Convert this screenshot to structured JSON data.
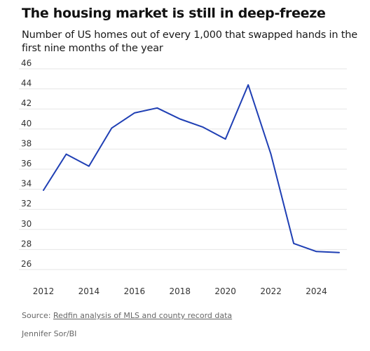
{
  "title": "The housing market is still in deep-freeze",
  "subtitle": "Number of US homes out of every 1,000 that swapped hands in the first nine months of the year",
  "source_prefix": "Source: ",
  "source_link": "Redfin analysis of MLS and county record data",
  "credit": "Jennifer Sor/BI",
  "colors": {
    "line": "#1f3fb4",
    "grid": "#e6e6e6",
    "text": "#1a1a1a",
    "muted": "#666666"
  },
  "chart_data": {
    "type": "line",
    "title": "The housing market is still in deep-freeze",
    "subtitle": "Number of US homes out of every 1,000 that swapped hands in the first nine months of the year",
    "xlabel": "",
    "ylabel": "",
    "x": [
      2012,
      2013,
      2014,
      2015,
      2016,
      2017,
      2018,
      2019,
      2020,
      2021,
      2022,
      2023,
      2024,
      2025
    ],
    "series": [
      {
        "values": [
          33.9,
          37.5,
          36.3,
          40.1,
          41.6,
          42.1,
          41.0,
          40.2,
          39.0,
          44.4,
          37.5,
          28.6,
          27.8,
          27.7
        ]
      }
    ],
    "xlim": [
      2012,
      2025
    ],
    "ylim": [
      26,
      46
    ],
    "y_ticks": [
      26,
      28,
      30,
      32,
      34,
      36,
      38,
      40,
      42,
      44,
      46
    ],
    "x_ticks": [
      2012,
      2014,
      2016,
      2018,
      2020,
      2022,
      2024
    ],
    "grid": true,
    "legend": "none"
  }
}
